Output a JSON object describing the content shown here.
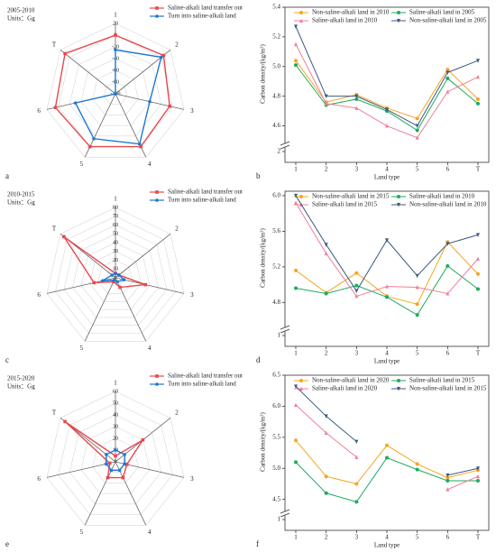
{
  "chart_data": [
    {
      "type": "radar",
      "panel_label": "a",
      "title": "2005-2010",
      "subtitle": "Units：Gg",
      "categories": [
        "1",
        "2",
        "3",
        "4",
        "5",
        "6",
        "T"
      ],
      "rlim": [
        -100,
        20
      ],
      "rticks": [
        -100,
        -80,
        -60,
        -40,
        -20,
        0,
        20
      ],
      "series": [
        {
          "name": "Saline-alkali land transfer out",
          "color": "#e8474c",
          "marker": "square",
          "values": [
            0,
            5,
            -5,
            0,
            0,
            5,
            10
          ]
        },
        {
          "name": "Turn into saline-alkali land",
          "color": "#1f77d0",
          "marker": "circle",
          "values": [
            -25,
            0,
            -40,
            -5,
            -15,
            -30,
            -100
          ]
        }
      ]
    },
    {
      "type": "line",
      "panel_label": "b",
      "xlabel": "Land type",
      "ylabel": "Carbon density/(kg/m²)",
      "categories": [
        "1",
        "2",
        "3",
        "4",
        "5",
        "6",
        "T"
      ],
      "ylim": [
        4.5,
        5.4
      ],
      "yticks": [
        {
          "value": 4.6,
          "label": "4.6"
        },
        {
          "value": 4.8,
          "label": "4.8"
        },
        {
          "value": 5.0,
          "label": "5.0"
        },
        {
          "value": 5.2,
          "label": "5.2"
        },
        {
          "value": 5.4,
          "label": "5.4"
        }
      ],
      "break_ytick": 2,
      "series": [
        {
          "name": "Non-saline-alkali land in 2010",
          "color": "#f5a623",
          "marker": "circle",
          "values": [
            5.04,
            4.76,
            4.81,
            4.72,
            4.65,
            4.98,
            4.78
          ]
        },
        {
          "name": "Saline-alkali land in 2005",
          "color": "#1faa5e",
          "marker": "circle",
          "values": [
            5.01,
            4.74,
            4.78,
            4.7,
            4.57,
            4.92,
            4.75
          ]
        },
        {
          "name": "Saline-alkali land in 2010",
          "color": "#f07f9a",
          "marker": "triangle-up",
          "values": [
            5.15,
            4.75,
            4.72,
            4.6,
            4.52,
            4.83,
            4.93
          ]
        },
        {
          "name": "Non-saline-alkali land in 2005",
          "color": "#3c5a80",
          "marker": "triangle-down",
          "values": [
            5.27,
            4.8,
            4.8,
            4.71,
            4.6,
            4.96,
            5.04
          ]
        }
      ]
    },
    {
      "type": "radar",
      "panel_label": "c",
      "title": "2010-2015",
      "subtitle": "Units：Gg",
      "categories": [
        "1",
        "2",
        "3",
        "4",
        "5",
        "6",
        "T"
      ],
      "rlim": [
        0,
        80
      ],
      "rticks": [
        0,
        10,
        20,
        30,
        40,
        50,
        60,
        70,
        80
      ],
      "series": [
        {
          "name": "Saline-alkali land transfer out",
          "color": "#e8474c",
          "marker": "square",
          "values": [
            5,
            5,
            35,
            12,
            5,
            25,
            75
          ]
        },
        {
          "name": "Turn into saline-alkali land",
          "color": "#1f77d0",
          "marker": "circle",
          "values": [
            5,
            5,
            10,
            5,
            3,
            15,
            5
          ]
        }
      ]
    },
    {
      "type": "line",
      "panel_label": "d",
      "xlabel": "Land type",
      "ylabel": "Carbon density/(kg/m²)",
      "categories": [
        "1",
        "2",
        "3",
        "4",
        "5",
        "6",
        "T"
      ],
      "ylim": [
        4.55,
        6.05
      ],
      "yticks": [
        {
          "value": 4.8,
          "label": "4.8"
        },
        {
          "value": 5.2,
          "label": "5.2"
        },
        {
          "value": 5.6,
          "label": "5.6"
        },
        {
          "value": 6.0,
          "label": "6.0"
        }
      ],
      "break_ytick": 1,
      "series": [
        {
          "name": "Non-saline-alkali land in 2015",
          "color": "#f5a623",
          "marker": "circle",
          "values": [
            5.16,
            4.91,
            5.13,
            4.87,
            4.78,
            5.48,
            5.12
          ]
        },
        {
          "name": "Saline-alkali land in 2010",
          "color": "#1faa5e",
          "marker": "circle",
          "values": [
            4.96,
            4.9,
            4.99,
            4.86,
            4.66,
            5.21,
            4.95
          ]
        },
        {
          "name": "Saline-alkali land in 2015",
          "color": "#f07f9a",
          "marker": "triangle-up",
          "values": [
            5.92,
            5.35,
            4.87,
            4.98,
            4.97,
            4.9,
            5.29
          ]
        },
        {
          "name": "Non-saline-alkali land in 2010",
          "color": "#3c5a80",
          "marker": "triangle-down",
          "values": [
            6.0,
            5.45,
            4.93,
            5.5,
            5.1,
            5.46,
            5.56
          ]
        }
      ]
    },
    {
      "type": "radar",
      "panel_label": "e",
      "title": "2015-2020",
      "subtitle": "Units：Gg",
      "categories": [
        "1",
        "2",
        "3",
        "4",
        "5",
        "6",
        "T"
      ],
      "rlim": [
        0,
        60
      ],
      "rticks": [
        0,
        10,
        20,
        30,
        40,
        50,
        60
      ],
      "series": [
        {
          "name": "Saline-alkali land transfer out",
          "color": "#e8474c",
          "marker": "square",
          "values": [
            5,
            30,
            10,
            15,
            15,
            5,
            55
          ]
        },
        {
          "name": "Turn into saline-alkali land",
          "color": "#1f77d0",
          "marker": "circle",
          "values": [
            10,
            10,
            8,
            8,
            8,
            8,
            10
          ]
        }
      ]
    },
    {
      "type": "line",
      "panel_label": "f",
      "xlabel": "Land type",
      "ylabel": "Carbon density/(kg/m²)",
      "categories": [
        "1",
        "2",
        "3",
        "4",
        "5",
        "6",
        "T"
      ],
      "ylim": [
        4.35,
        6.5
      ],
      "yticks": [
        4.5,
        {
          "value": 5.0,
          "label": "5.0"
        },
        5.5,
        {
          "value": 6.0,
          "label": "6.0"
        },
        6.5
      ],
      "break_ytick": 1,
      "series": [
        {
          "name": "Non-saline-alkali land in 2020",
          "color": "#f5a623",
          "marker": "circle",
          "values": [
            5.45,
            4.87,
            4.75,
            5.37,
            5.07,
            4.85,
            4.97
          ]
        },
        {
          "name": "Saline-alkali land in 2015",
          "color": "#1faa5e",
          "marker": "circle",
          "values": [
            5.1,
            4.6,
            4.46,
            5.17,
            4.98,
            4.8,
            4.8
          ]
        },
        {
          "name": "Saline-alkali land in 2020",
          "color": "#f07f9a",
          "marker": "triangle-up",
          "values": [
            6.02,
            5.57,
            5.18,
            null,
            null,
            4.66,
            4.87
          ]
        },
        {
          "name": "Non-saline-alkali land in 2015",
          "color": "#3c5a80",
          "marker": "triangle-down",
          "values": [
            6.32,
            5.84,
            5.43,
            null,
            null,
            4.89,
            5.0
          ]
        }
      ]
    }
  ]
}
